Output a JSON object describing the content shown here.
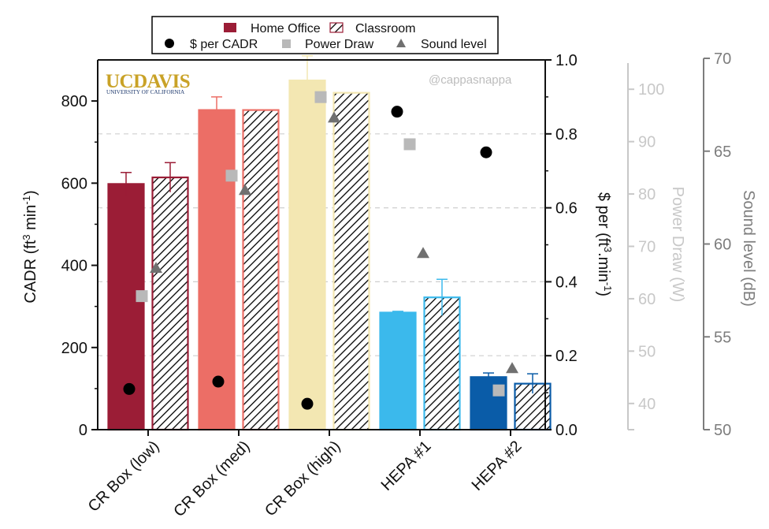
{
  "chart_data": {
    "type": "bar",
    "categories": [
      "CR Box (low)",
      "CR Box (med)",
      "CR Box (high)",
      "HEPA #1",
      "HEPA #2"
    ],
    "series": [
      {
        "name": "Home Office",
        "style": "solid",
        "values": [
          598,
          778,
          850,
          285,
          128
        ],
        "errors": [
          28,
          32,
          60,
          3,
          10
        ]
      },
      {
        "name": "Classroom",
        "style": "hatched",
        "values": [
          614,
          778,
          820,
          322,
          112
        ],
        "errors": [
          36,
          0,
          0,
          44,
          24
        ]
      }
    ],
    "bar_colors": [
      "#9b1d36",
      "#ec6e66",
      "#f3e7b2",
      "#3bb9ec",
      "#0a5ca8"
    ],
    "markers": [
      {
        "name": "$ per CADR",
        "axis": "cost",
        "shape": "circle",
        "color": "#000000",
        "values": [
          0.11,
          0.13,
          0.07,
          0.86,
          0.75
        ]
      },
      {
        "name": "Power Draw",
        "axis": "power",
        "shape": "square",
        "color": "#b9b9b9",
        "values": [
          60.5,
          83.5,
          98.5,
          89.5,
          42.5
        ]
      },
      {
        "name": "Sound level",
        "axis": "sound",
        "shape": "triangle",
        "color": "#707070",
        "values": [
          58.7,
          62.9,
          66.8,
          59.5,
          53.3
        ]
      }
    ],
    "axes": {
      "left": {
        "label_main": "CADR (ft",
        "label_sup": "3",
        "label_mid": " min",
        "label_sup2": "-1",
        "label_end": ")",
        "ylim": [
          0,
          900
        ],
        "ticks": [
          0,
          200,
          400,
          600,
          800
        ],
        "tick_labels": [
          "0",
          "200",
          "400",
          "600",
          "800"
        ]
      },
      "cost": {
        "label_main": "$ per (ft",
        "label_sup": "3",
        "label_mid": ".min",
        "label_sup2": "-1",
        "label_end": ")",
        "ylim": [
          0,
          1.0
        ],
        "ticks": [
          0,
          0.2,
          0.4,
          0.6,
          0.8,
          1.0
        ],
        "tick_labels": [
          "0.0",
          "0.2",
          "0.4",
          "0.6",
          "0.8",
          "1.0"
        ]
      },
      "power": {
        "label": "Power Draw (W)",
        "color": "#c8c8c8",
        "ylim": [
          35,
          105
        ],
        "ticks": [
          40,
          50,
          60,
          70,
          80,
          90,
          100
        ],
        "tick_labels": [
          "40",
          "50",
          "60",
          "70",
          "80",
          "90",
          "100"
        ]
      },
      "sound": {
        "label": "Sound level (dB)",
        "color": "#7d7d7d",
        "ylim": [
          50,
          70
        ],
        "ticks": [
          50,
          55,
          60,
          65,
          70
        ],
        "tick_labels": [
          "50",
          "55",
          "60",
          "65",
          "70"
        ]
      }
    },
    "legend": {
      "position": "top",
      "entries": [
        "Home Office",
        "Classroom",
        "$ per CADR",
        "Power Draw",
        "Sound level"
      ]
    },
    "grid": "dashed horizontal",
    "logo": {
      "main": "UCDAVIS",
      "sub": "UNIVERSITY OF CALIFORNIA",
      "color": "#c9a227",
      "subcolor": "#1f3a6e"
    },
    "watermark": "@cappasnappa"
  }
}
